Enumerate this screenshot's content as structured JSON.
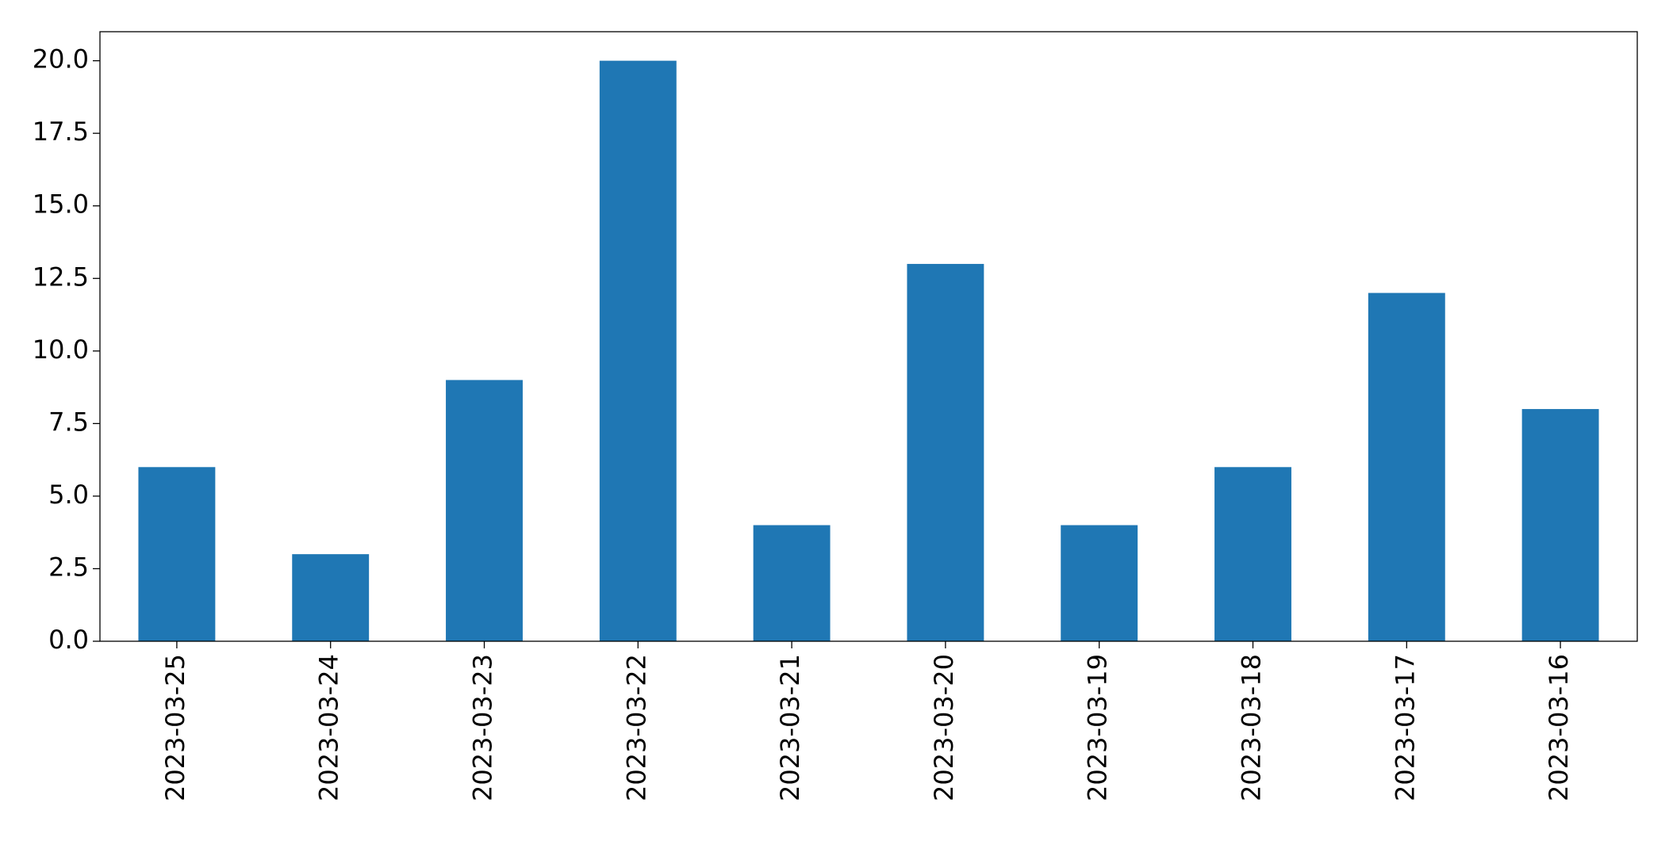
{
  "chart_data": {
    "type": "bar",
    "categories": [
      "2023-03-25",
      "2023-03-24",
      "2023-03-23",
      "2023-03-22",
      "2023-03-21",
      "2023-03-20",
      "2023-03-19",
      "2023-03-18",
      "2023-03-17",
      "2023-03-16"
    ],
    "values": [
      6,
      3,
      9,
      20,
      4,
      13,
      4,
      6,
      12,
      8
    ],
    "color": "#1f77b4",
    "ylim": [
      0,
      21
    ],
    "yticks": [
      {
        "value": 0,
        "label": "0.0"
      },
      2.5,
      {
        "value": 5,
        "label": "5.0"
      },
      7.5,
      {
        "value": 10,
        "label": "10.0"
      },
      12.5,
      {
        "value": 15,
        "label": "15.0"
      },
      17.5,
      {
        "value": 20,
        "label": "20.0"
      }
    ],
    "grid": false
  }
}
